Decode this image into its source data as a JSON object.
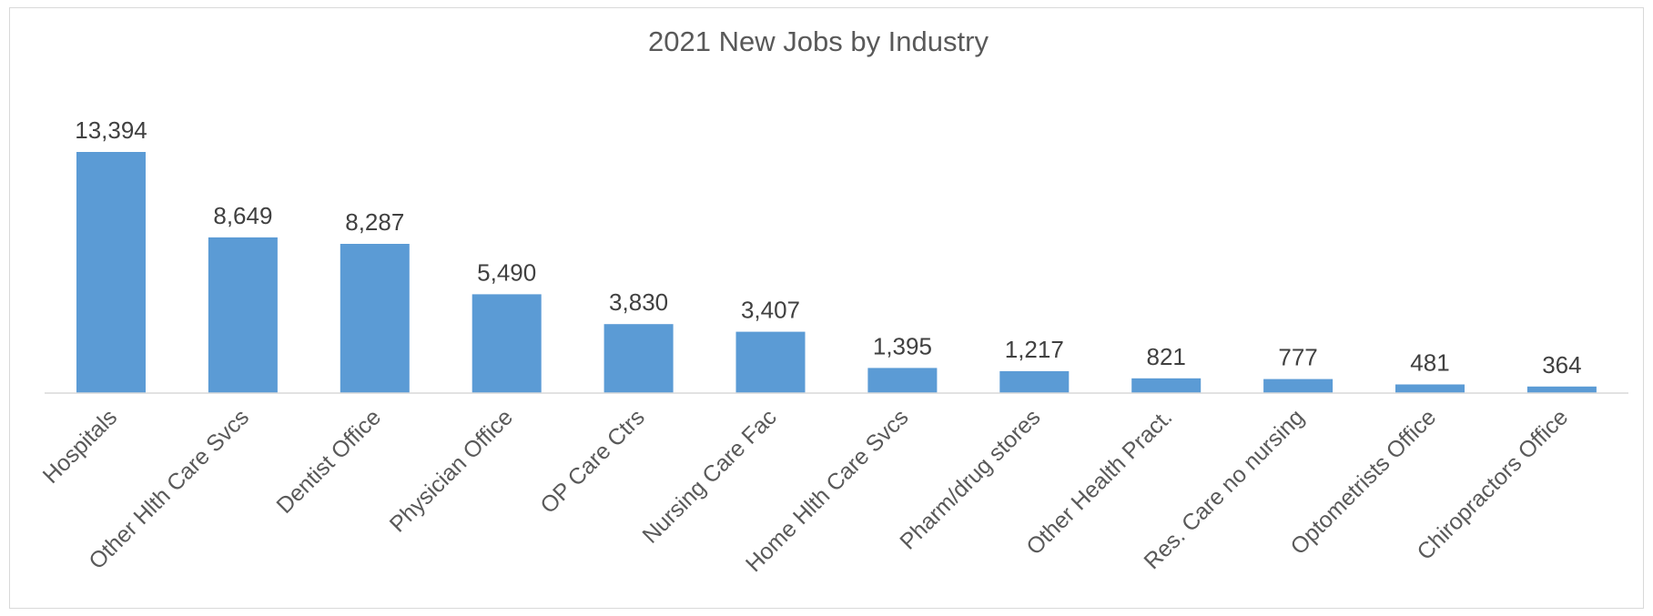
{
  "chart_data": {
    "type": "bar",
    "title": "2021 New Jobs by Industry",
    "xlabel": "",
    "ylabel": "",
    "categories": [
      "Hospitals",
      "Other Hlth Care Svcs",
      "Dentist Office",
      "Physician Office",
      "OP Care Ctrs",
      "Nursing Care Fac",
      "Home Hlth Care Svcs",
      "Pharm/drug stores",
      "Other Health Pract.",
      "Res. Care no nursing",
      "Optometrists Office",
      "Chiropractors Office"
    ],
    "values": [
      13394,
      8649,
      8287,
      5490,
      3830,
      3407,
      1395,
      1217,
      821,
      777,
      481,
      364
    ],
    "data_labels": [
      "13,394",
      "8,649",
      "8,287",
      "5,490",
      "3,830",
      "3,407",
      "1,395",
      "1,217",
      "821",
      "777",
      "481",
      "364"
    ],
    "ylim": [
      0,
      13394
    ],
    "grid": false,
    "legend": "none",
    "bar_color": "#5b9bd5",
    "axis_color": "#d9d9d9"
  }
}
